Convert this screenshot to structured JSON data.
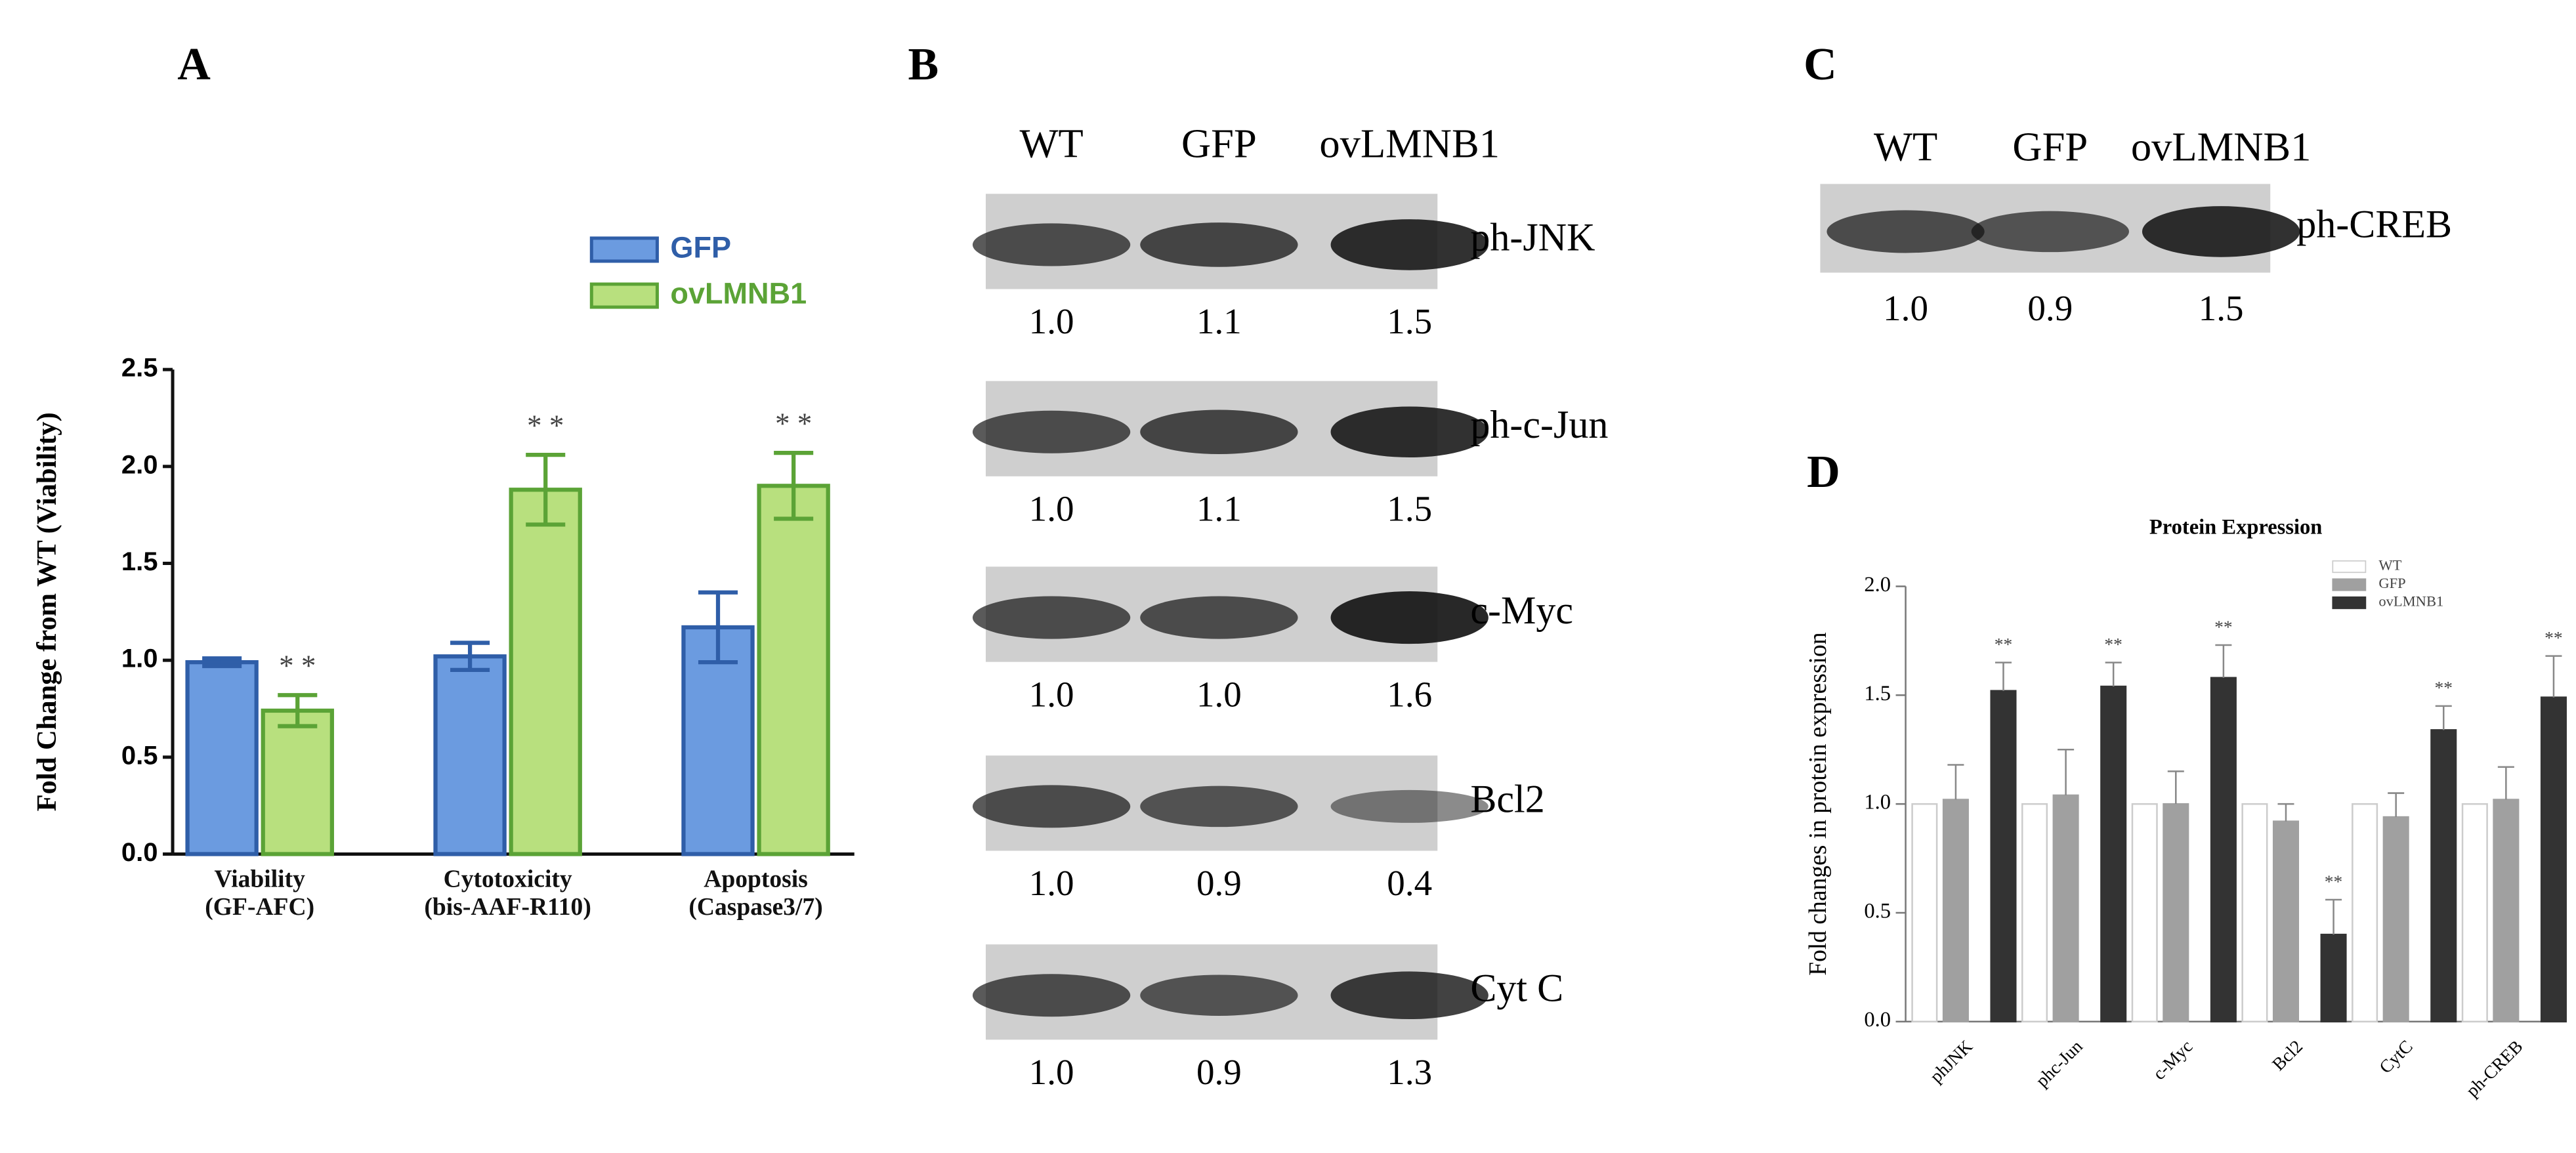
{
  "chart_data": [
    {
      "type": "bar",
      "panel": "A",
      "ylabel": "Fold Change from WT (Viability)",
      "categories": [
        "Viability\n(GF-AFC)",
        "Cytotoxicity\n(bis-AAF-R110)",
        "Apoptosis\n(Caspase3/7)"
      ],
      "series": [
        {
          "name": "GFP",
          "color": "#6b9be0",
          "edge": "#2f5ea8",
          "values": [
            0.99,
            1.02,
            1.17
          ],
          "errors": [
            0.02,
            0.07,
            0.18
          ]
        },
        {
          "name": "ovLMNB1",
          "color": "#b8e07e",
          "edge": "#5ba336",
          "values": [
            0.74,
            1.88,
            1.9
          ],
          "errors": [
            0.08,
            0.18,
            0.17
          ],
          "significance": [
            "* *",
            "* *",
            "* *"
          ]
        }
      ],
      "ylim": [
        0,
        2.5
      ],
      "yticks": [
        {
          "value": 0,
          "label": "0.0"
        },
        {
          "value": 0.5,
          "label": "0.5"
        },
        {
          "value": 1,
          "label": "1.0"
        },
        {
          "value": 1.5,
          "label": "1.5"
        },
        {
          "value": 2,
          "label": "2.0"
        },
        {
          "value": 2.5,
          "label": "2.5"
        }
      ],
      "legend": "top-right"
    },
    {
      "type": "bar",
      "panel": "D",
      "title": "Protein Expression",
      "ylabel": "Fold changes in protein expression",
      "categories": [
        "phJNK",
        "phc-Jun",
        "c-Myc",
        "Bcl2",
        "CytC",
        "ph-CREB"
      ],
      "series": [
        {
          "name": "WT",
          "color": "#ffffff",
          "edge": "#cccccc",
          "values": [
            1,
            1,
            1,
            1,
            1,
            1
          ]
        },
        {
          "name": "GFP",
          "color": "#a0a0a0",
          "edge": "#a0a0a0",
          "values": [
            1.02,
            1.04,
            1.0,
            0.92,
            0.94,
            1.02
          ],
          "errors": [
            0.16,
            0.21,
            0.15,
            0.08,
            0.11,
            0.15
          ]
        },
        {
          "name": "ovLMNB1",
          "color": "#333333",
          "edge": "#333333",
          "values": [
            1.52,
            1.54,
            1.58,
            0.4,
            1.34,
            1.49
          ],
          "errors": [
            0.13,
            0.11,
            0.15,
            0.16,
            0.11,
            0.19
          ],
          "significance": [
            "**",
            "**",
            "**",
            "**",
            "**",
            "**"
          ]
        }
      ],
      "ylim": [
        0,
        2
      ],
      "yticks": [
        {
          "value": 0,
          "label": "0.0"
        },
        {
          "value": 0.5,
          "label": "0.5"
        },
        {
          "value": 1,
          "label": "1.0"
        },
        {
          "value": 1.5,
          "label": "1.5"
        },
        {
          "value": 2,
          "label": "2.0"
        }
      ],
      "legend": "top-right"
    }
  ],
  "blots": [
    {
      "panel": "B",
      "lanes": [
        "WT",
        "GFP",
        "ovLMNB1"
      ],
      "rows": [
        {
          "protein": "ph-JNK",
          "values": [
            "1.0",
            "1.1",
            "1.5"
          ]
        },
        {
          "protein": "ph-c-Jun",
          "values": [
            "1.0",
            "1.1",
            "1.5"
          ]
        },
        {
          "protein": "c-Myc",
          "values": [
            "1.0",
            "1.0",
            "1.6"
          ]
        },
        {
          "protein": "Bcl2",
          "values": [
            "1.0",
            "0.9",
            "0.4"
          ]
        },
        {
          "protein": "Cyt C",
          "values": [
            "1.0",
            "0.9",
            "1.3"
          ]
        }
      ]
    },
    {
      "panel": "C",
      "lanes": [
        "WT",
        "GFP",
        "ovLMNB1"
      ],
      "rows": [
        {
          "protein": "ph-CREB",
          "values": [
            "1.0",
            "0.9",
            "1.5"
          ]
        }
      ]
    }
  ]
}
